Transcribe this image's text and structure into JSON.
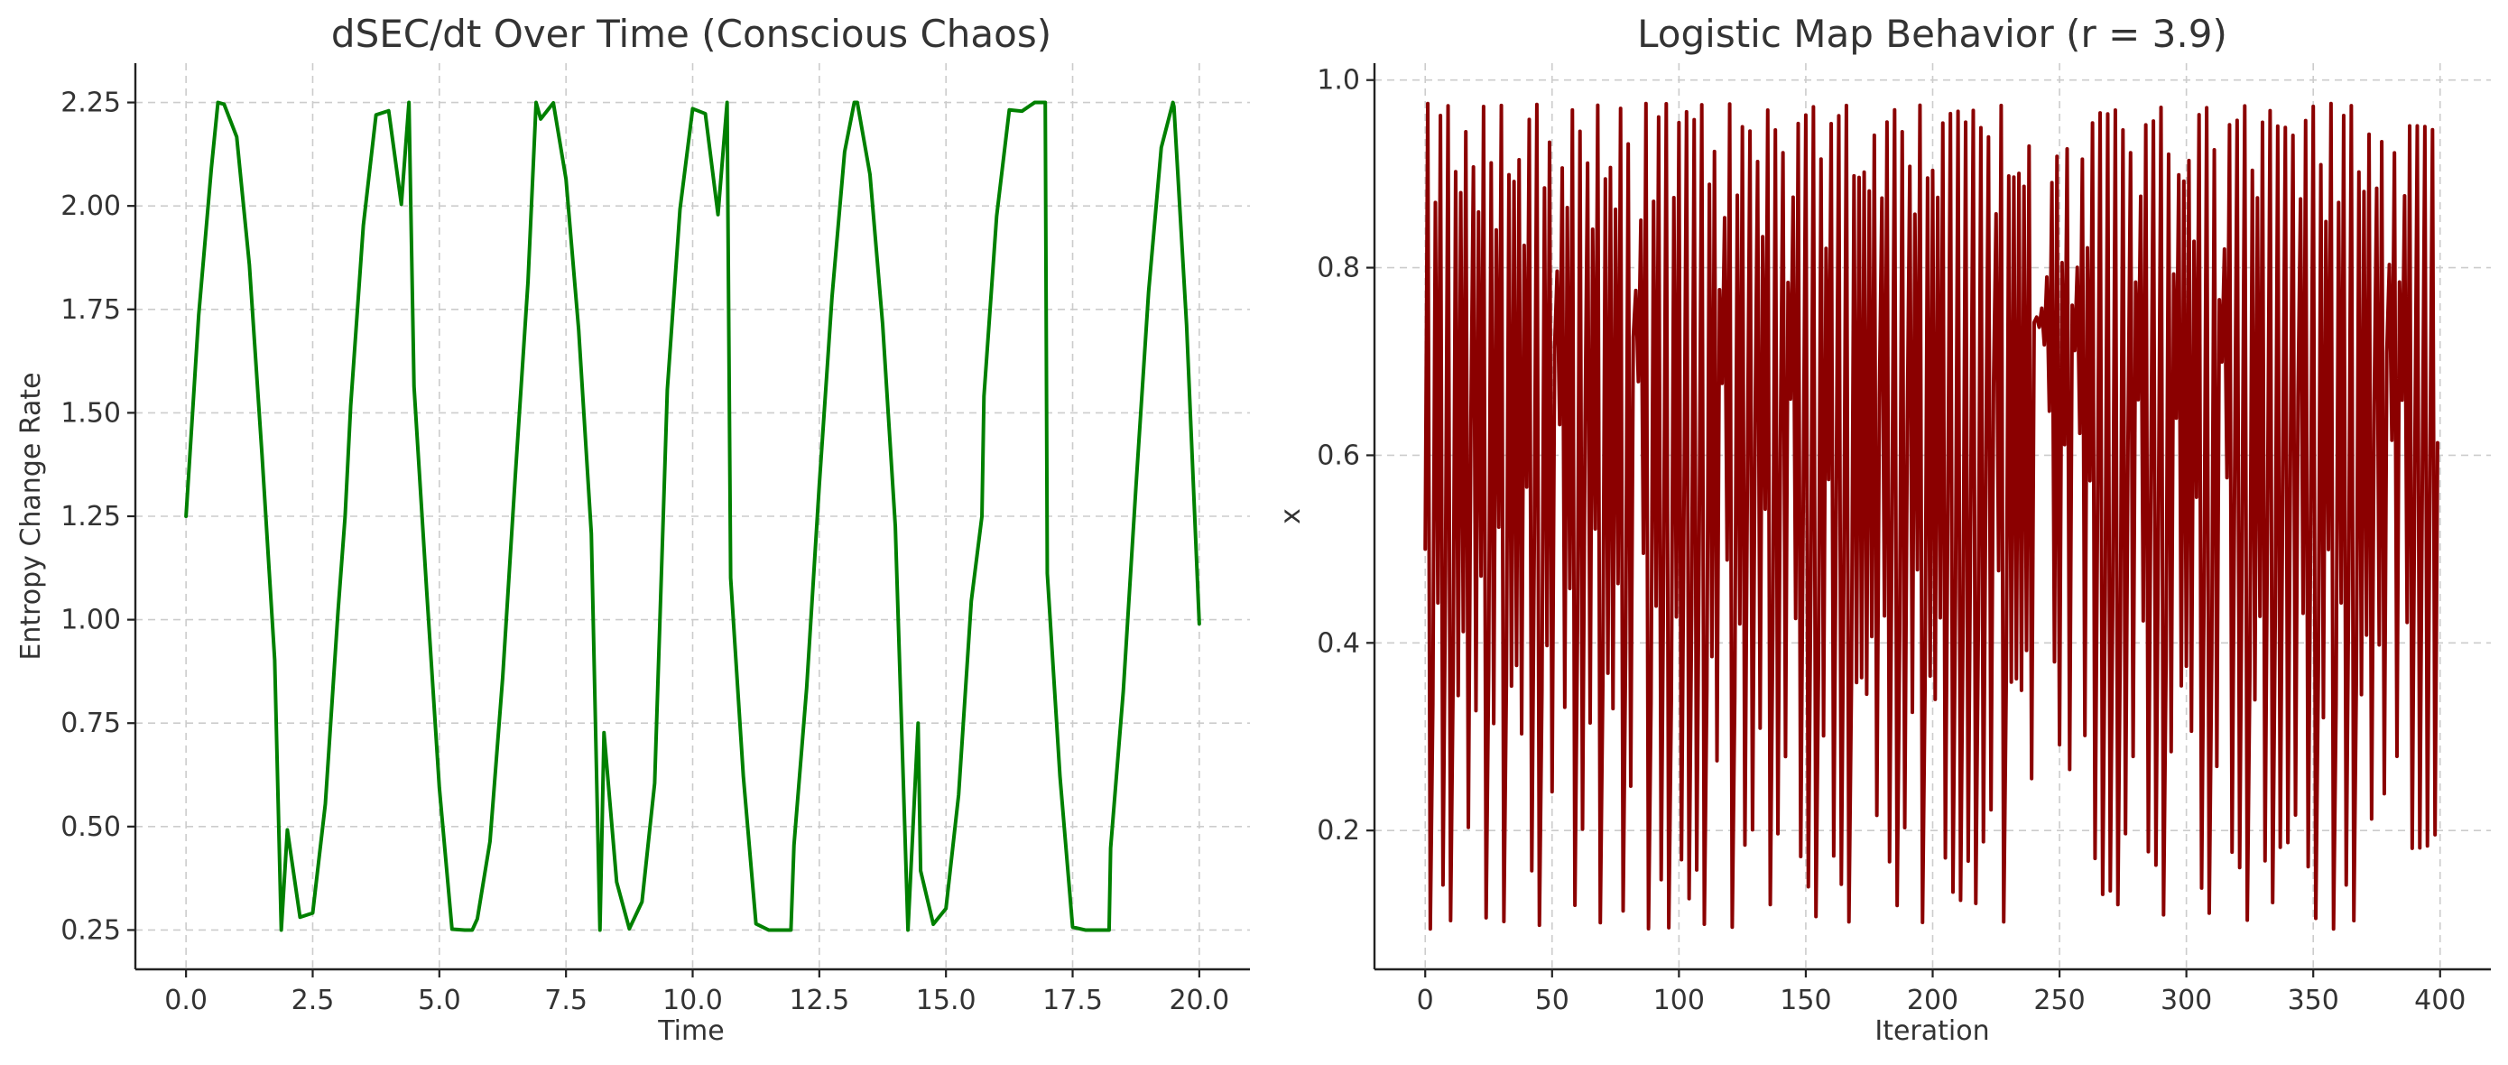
{
  "chart_data": [
    {
      "type": "line",
      "title": "dSEC/dt Over Time (Conscious Chaos)",
      "xlabel": "Time",
      "ylabel": "Entropy Change Rate",
      "xlim": [
        -1.0,
        21.0
      ],
      "ylim": [
        0.155,
        2.345
      ],
      "xticks": [
        0,
        2.5,
        5,
        7.5,
        10,
        12.5,
        15,
        17.5,
        20
      ],
      "xtick_labels": [
        "0.0",
        "2.5",
        "5.0",
        "7.5",
        "10.0",
        "12.5",
        "15.0",
        "17.5",
        "20.0"
      ],
      "yticks": [
        0.25,
        0.5,
        0.75,
        1.0,
        1.25,
        1.5,
        1.75,
        2.0,
        2.25
      ],
      "ytick_labels": [
        "0.25",
        "0.50",
        "0.75",
        "1.00",
        "1.25",
        "1.50",
        "1.75",
        "2.00",
        "2.25"
      ],
      "grid": true,
      "series": [
        {
          "color": "#008000",
          "x": [
            0,
            0.25,
            0.5,
            0.63,
            0.75,
            1.0,
            1.25,
            1.5,
            1.75,
            1.88,
            2.0,
            2.25,
            2.5,
            2.75,
            3.0,
            3.14,
            3.25,
            3.5,
            3.75,
            4.0,
            4.25,
            4.4,
            4.5,
            4.75,
            5.0,
            5.25,
            5.5,
            5.65,
            5.75,
            6.0,
            6.25,
            6.5,
            6.75,
            6.91,
            7.0,
            7.25,
            7.5,
            7.75,
            8.0,
            8.17,
            8.25,
            8.5,
            8.75,
            9.0,
            9.25,
            9.42,
            9.5,
            9.75,
            10.0,
            10.25,
            10.5,
            10.68,
            10.75,
            11.0,
            11.25,
            11.5,
            11.75,
            11.94,
            12.0,
            12.25,
            12.5,
            12.75,
            13.0,
            13.19,
            13.25,
            13.5,
            13.75,
            14.0,
            14.25,
            14.45,
            14.5,
            14.75,
            15.0,
            15.25,
            15.5,
            15.71,
            15.75,
            16.0,
            16.25,
            16.5,
            16.75,
            16.96,
            17.0,
            17.25,
            17.5,
            17.75,
            18.0,
            18.22,
            18.25,
            18.5,
            18.75,
            19.0,
            19.25,
            19.48,
            19.5,
            19.75,
            20.0
          ],
          "y": [
            1.25,
            1.736,
            2.091,
            2.25,
            2.246,
            2.167,
            1.858,
            1.398,
            0.902,
            0.25,
            0.492,
            0.281,
            0.291,
            0.555,
            1.02,
            1.25,
            1.517,
            1.953,
            2.22,
            2.23,
            2.004,
            2.25,
            1.564,
            1.07,
            0.594,
            0.252,
            0.25,
            0.25,
            0.277,
            0.464,
            0.86,
            1.349,
            1.817,
            2.25,
            2.21,
            2.249,
            2.065,
            1.701,
            1.208,
            0.25,
            0.727,
            0.366,
            0.253,
            0.318,
            0.605,
            1.25,
            1.556,
            1.992,
            2.235,
            2.223,
            1.979,
            2.25,
            1.101,
            0.622,
            0.265,
            0.25,
            0.25,
            0.25,
            0.455,
            0.835,
            1.326,
            1.779,
            2.131,
            2.25,
            2.25,
            2.076,
            1.714,
            1.226,
            0.25,
            0.75,
            0.393,
            0.264,
            0.302,
            0.577,
            1.045,
            1.25,
            1.54,
            1.975,
            2.232,
            2.229,
            2.25,
            2.25,
            1.112,
            0.622,
            0.257,
            0.25,
            0.25,
            0.25,
            0.448,
            0.827,
            1.321,
            1.793,
            2.141,
            2.25,
            2.24,
            1.711,
            0.99
          ]
        }
      ]
    },
    {
      "type": "line",
      "title": "Logistic Map Behavior (r = 3.9)",
      "xlabel": "Iteration",
      "ylabel": "x",
      "xlim": [
        -20,
        420
      ],
      "ylim": [
        0.052,
        1.018
      ],
      "xticks": [
        0,
        50,
        100,
        150,
        200,
        250,
        300,
        350,
        400
      ],
      "xtick_labels": [
        "0",
        "50",
        "100",
        "150",
        "200",
        "250",
        "300",
        "350",
        "400"
      ],
      "yticks": [
        0.2,
        0.4,
        0.6,
        0.8,
        1.0
      ],
      "ytick_labels": [
        "0.2",
        "0.4",
        "0.6",
        "0.8",
        "1.0"
      ],
      "grid": true,
      "series": [
        {
          "color": "#8b0000",
          "r": 3.9,
          "x0": 0.5,
          "n": 400
        }
      ]
    }
  ]
}
